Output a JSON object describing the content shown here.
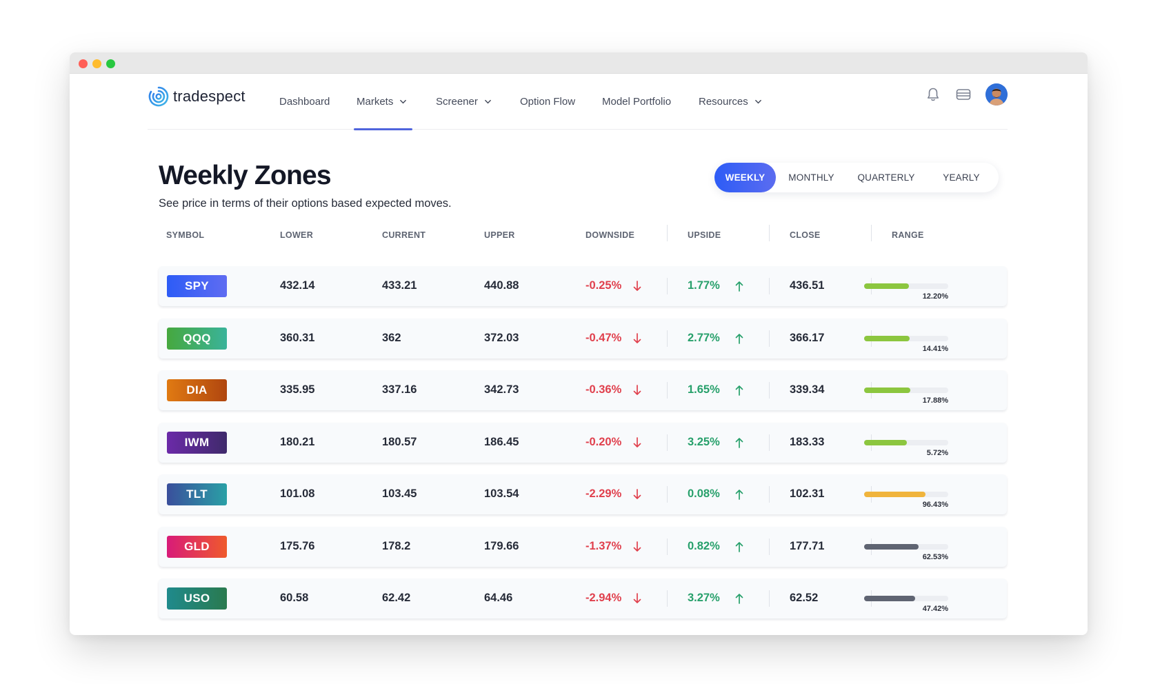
{
  "brand": {
    "name": "tradespect"
  },
  "nav": {
    "items": [
      {
        "label": "Dashboard",
        "dropdown": false,
        "active": false
      },
      {
        "label": "Markets",
        "dropdown": true,
        "active": true
      },
      {
        "label": "Screener",
        "dropdown": true,
        "active": false
      },
      {
        "label": "Option Flow",
        "dropdown": false,
        "active": false
      },
      {
        "label": "Model Portfolio",
        "dropdown": false,
        "active": false
      },
      {
        "label": "Resources",
        "dropdown": true,
        "active": false
      }
    ],
    "icons": [
      "bell-icon",
      "wallet-icon",
      "avatar"
    ]
  },
  "page": {
    "title": "Weekly Zones",
    "subtitle": "See price in terms of their options based expected moves."
  },
  "periods": {
    "options": [
      "WEEKLY",
      "MONTHLY",
      "QUARTERLY",
      "YEARLY"
    ],
    "selected": "WEEKLY"
  },
  "table": {
    "headers": [
      "SYMBOL",
      "LOWER",
      "CURRENT",
      "UPPER",
      "DOWNSIDE",
      "UPSIDE",
      "CLOSE",
      "RANGE"
    ],
    "rows": [
      {
        "symbol": "SPY",
        "lower": "432.14",
        "current": "433.21",
        "upper": "440.88",
        "downside": "-0.25%",
        "upside": "1.77%",
        "close": "436.51",
        "range": "12.20%",
        "range_fill_fraction": 0.53,
        "range_color": "#8cc63f",
        "badge_colors": [
          "#2d5cf6",
          "#5f6cf2"
        ]
      },
      {
        "symbol": "QQQ",
        "lower": "360.31",
        "current": "362",
        "upper": "372.03",
        "downside": "-0.47%",
        "upside": "2.77%",
        "close": "366.17",
        "range": "14.41%",
        "range_fill_fraction": 0.54,
        "range_color": "#8cc63f",
        "badge_colors": [
          "#46a83e",
          "#3ab39a"
        ]
      },
      {
        "symbol": "DIA",
        "lower": "335.95",
        "current": "337.16",
        "upper": "342.73",
        "downside": "-0.36%",
        "upside": "1.65%",
        "close": "339.34",
        "range": "17.88%",
        "range_fill_fraction": 0.55,
        "range_color": "#8cc63f",
        "badge_colors": [
          "#e07a12",
          "#b0460f"
        ]
      },
      {
        "symbol": "IWM",
        "lower": "180.21",
        "current": "180.57",
        "upper": "186.45",
        "downside": "-0.20%",
        "upside": "3.25%",
        "close": "183.33",
        "range": "5.72%",
        "range_fill_fraction": 0.51,
        "range_color": "#8cc63f",
        "badge_colors": [
          "#6b2aa8",
          "#3f2a6b"
        ]
      },
      {
        "symbol": "TLT",
        "lower": "101.08",
        "current": "103.45",
        "upper": "103.54",
        "downside": "-2.29%",
        "upside": "0.08%",
        "close": "102.31",
        "range": "96.43%",
        "range_fill_fraction": 0.73,
        "range_color": "#f0b43c",
        "badge_colors": [
          "#3a4f9c",
          "#2aa0a6"
        ]
      },
      {
        "symbol": "GLD",
        "lower": "175.76",
        "current": "178.2",
        "upper": "179.66",
        "downside": "-1.37%",
        "upside": "0.82%",
        "close": "177.71",
        "range": "62.53%",
        "range_fill_fraction": 0.65,
        "range_color": "#5f6472",
        "badge_colors": [
          "#d81b79",
          "#ef5a2c"
        ]
      },
      {
        "symbol": "USO",
        "lower": "60.58",
        "current": "62.42",
        "upper": "64.46",
        "downside": "-2.94%",
        "upside": "3.27%",
        "close": "62.52",
        "range": "47.42%",
        "range_fill_fraction": 0.61,
        "range_color": "#5f6472",
        "badge_colors": [
          "#1f8a8c",
          "#2a7a4f"
        ]
      }
    ]
  }
}
